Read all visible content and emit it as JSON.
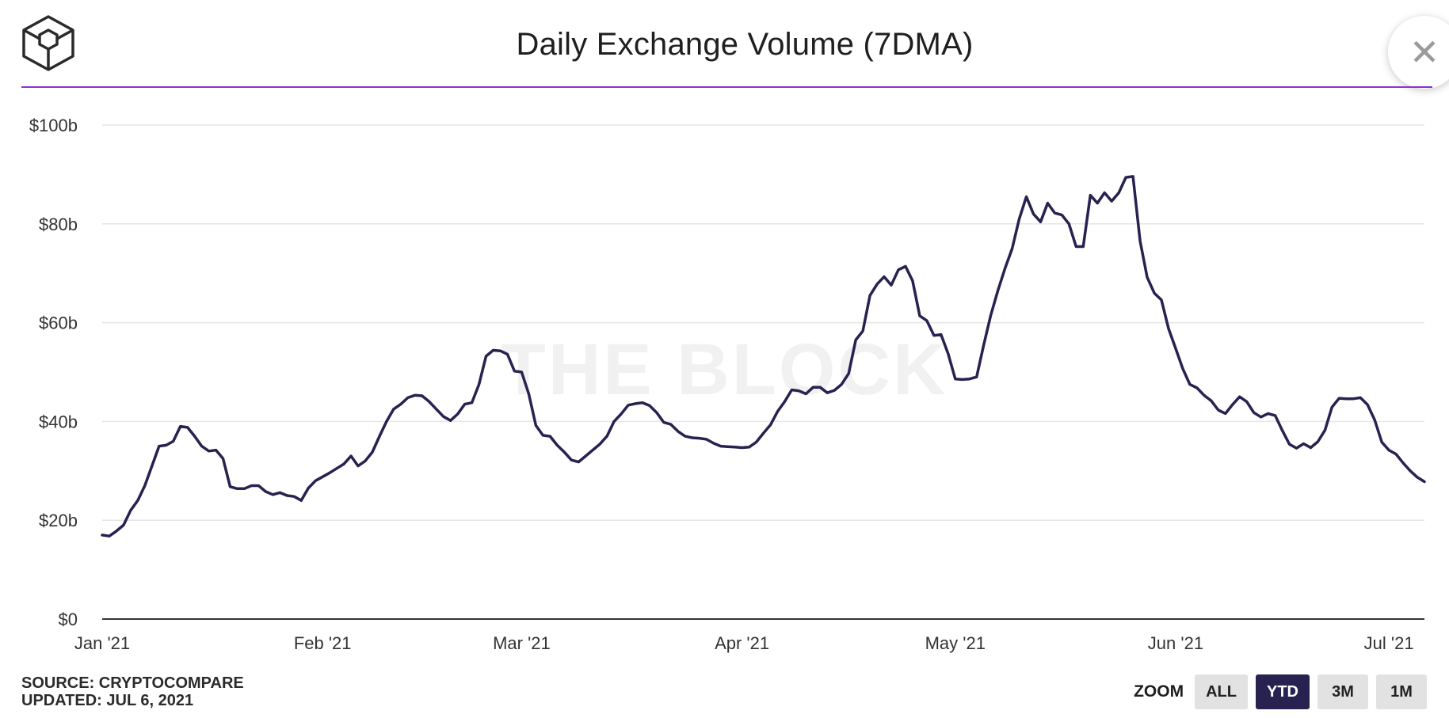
{
  "header": {
    "title": "Daily Exchange Volume (7DMA)",
    "logo": "the-block-cube-icon",
    "close_icon": "close-icon"
  },
  "watermark": "THE BLOCK",
  "footer": {
    "source": "SOURCE: CRYPTOCOMPARE",
    "updated": "UPDATED: JUL 6, 2021"
  },
  "zoom": {
    "label": "ZOOM",
    "options": [
      {
        "label": "ALL",
        "active": false
      },
      {
        "label": "YTD",
        "active": true
      },
      {
        "label": "3M",
        "active": false
      },
      {
        "label": "1M",
        "active": false
      }
    ]
  },
  "colors": {
    "line": "#27224f",
    "accent": "#8d2ed6",
    "grid": "#e6e6e6",
    "zoom_active": "#27224f"
  },
  "chart_data": {
    "type": "line",
    "title": "Daily Exchange Volume (7DMA)",
    "xlabel": "",
    "ylabel": "",
    "ylim": [
      0,
      100
    ],
    "yticks": [
      0,
      20,
      40,
      60,
      80,
      100
    ],
    "ytick_labels": [
      "$0",
      "$20b",
      "$40b",
      "$60b",
      "$80b",
      "$100b"
    ],
    "xlim": [
      0,
      186
    ],
    "xticks": [
      0,
      31,
      59,
      90,
      120,
      151,
      181
    ],
    "xtick_labels": [
      "Jan '21",
      "Feb '21",
      "Mar '21",
      "Apr '21",
      "May '21",
      "Jun '21",
      "Jul '21"
    ],
    "grid": true,
    "legend": "none",
    "series": [
      {
        "name": "",
        "values": [
          17.0,
          16.8,
          17.8,
          19.0,
          22.0,
          24.0,
          27.0,
          31.0,
          35.0,
          35.2,
          36.0,
          39.0,
          38.8,
          37.0,
          35.0,
          34.0,
          34.2,
          32.5,
          26.8,
          26.4,
          26.4,
          27.0,
          27.0,
          25.8,
          25.2,
          25.6,
          25.0,
          24.8,
          24.0,
          26.5,
          28.0,
          28.8,
          29.6,
          30.5,
          31.4,
          33.0,
          31.0,
          32.0,
          33.8,
          37.0,
          40.0,
          42.5,
          43.5,
          44.8,
          45.3,
          45.2,
          44.0,
          42.5,
          41.0,
          40.2,
          41.5,
          43.5,
          43.8,
          47.5,
          53.2,
          54.4,
          54.3,
          53.6,
          50.2,
          50.0,
          45.6,
          39.2,
          37.2,
          37.0,
          35.2,
          33.8,
          32.2,
          31.8,
          33.0,
          34.2,
          35.4,
          37.0,
          40.0,
          41.5,
          43.3,
          43.6,
          43.8,
          43.2,
          41.8,
          39.8,
          39.4,
          38.0,
          37.0,
          36.7,
          36.6,
          36.4,
          35.6,
          35.0,
          34.9,
          34.8,
          34.7,
          34.8,
          35.8,
          37.6,
          39.3,
          42.0,
          44.0,
          46.4,
          46.2,
          45.6,
          46.9,
          46.9,
          45.8,
          46.3,
          47.5,
          49.7,
          56.5,
          58.3,
          65.5,
          67.8,
          69.3,
          67.6,
          70.7,
          71.4,
          68.5,
          61.4,
          60.4,
          57.4,
          57.6,
          53.7,
          48.6,
          48.5,
          48.6,
          49.0,
          55.5,
          61.5,
          66.5,
          71.0,
          75.0,
          81.0,
          85.5,
          82.0,
          80.4,
          84.2,
          82.2,
          81.8,
          80.0,
          75.4,
          75.4,
          85.8,
          84.2,
          86.3,
          84.6,
          86.3,
          89.4,
          89.6,
          76.5,
          69.2,
          66.0,
          64.6,
          58.8,
          54.8,
          50.7,
          47.5,
          46.8,
          45.3,
          44.2,
          42.3,
          41.6,
          43.4,
          45.0,
          44.0,
          41.8,
          40.9,
          41.6,
          41.2,
          38.2,
          35.4,
          34.6,
          35.5,
          34.7,
          35.9,
          38.2,
          42.9,
          44.7,
          44.6,
          44.6,
          44.8,
          43.4,
          40.3,
          35.8,
          34.2,
          33.4,
          31.6,
          30.0,
          28.7,
          27.8
        ]
      }
    ]
  }
}
